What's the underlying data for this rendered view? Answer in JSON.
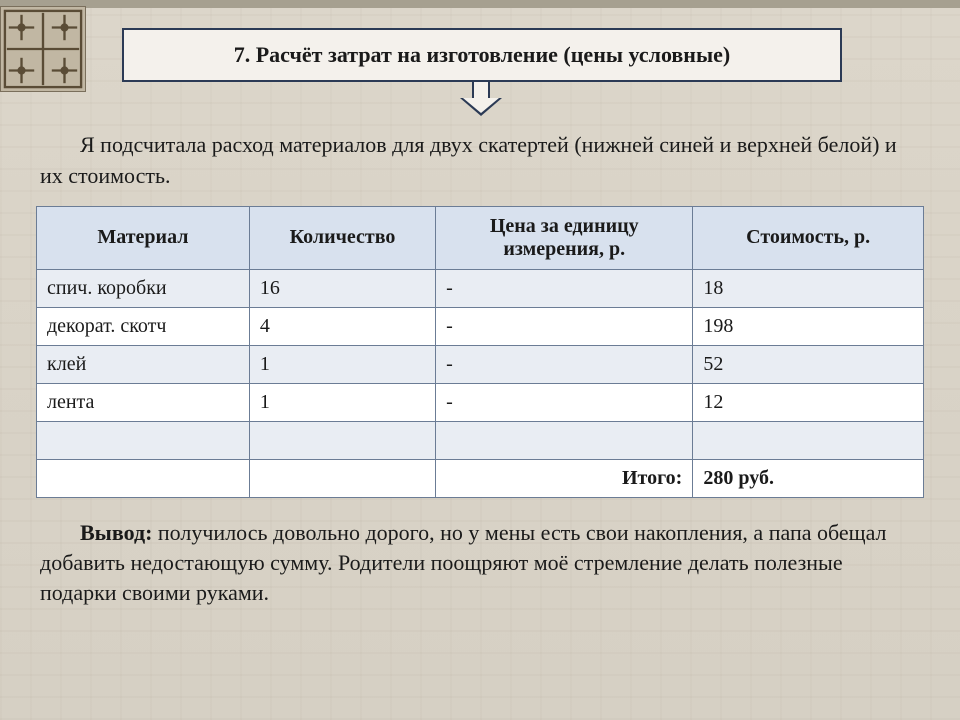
{
  "title": "7. Расчёт затрат на изготовление (цены условные)",
  "intro": "Я подсчитала расход материалов для двух скатертей (нижней синей и верхней белой) и их стоимость.",
  "table": {
    "columns": [
      "Материал",
      "Количество",
      "Цена за единицу измерения, р.",
      "Стоимость, р."
    ],
    "column_widths_pct": [
      24,
      21,
      29,
      26
    ],
    "header_bg": "#d8e1ee",
    "row_odd_bg": "#e9edf3",
    "row_even_bg": "#ffffff",
    "border_color": "#6b7c95",
    "font_size_pt": 15,
    "rows": [
      [
        "спич. коробки",
        "16",
        "-",
        "18"
      ],
      [
        "декорат. скотч",
        "4",
        "-",
        "198"
      ],
      [
        "клей",
        "1",
        "-",
        "52"
      ],
      [
        "лента",
        "1",
        "-",
        "12"
      ],
      [
        "",
        "",
        "",
        ""
      ]
    ],
    "total_label": "Итого:",
    "total_value": "280 руб."
  },
  "conclusion_lead": "Вывод:",
  "conclusion_text": " получилось довольно дорого, но у мены есть свои накопления, а папа обещал добавить недостающую сумму. Родители поощряют моё стремление делать полезные подарки своими руками.",
  "colors": {
    "page_bg": "#d9d3c7",
    "title_box_bg": "#f4f1ec",
    "title_box_border": "#2b3a55",
    "text": "#1a1a1a",
    "ornament_bg": "#c1b7a3",
    "ornament_stroke": "#5a4c36"
  }
}
